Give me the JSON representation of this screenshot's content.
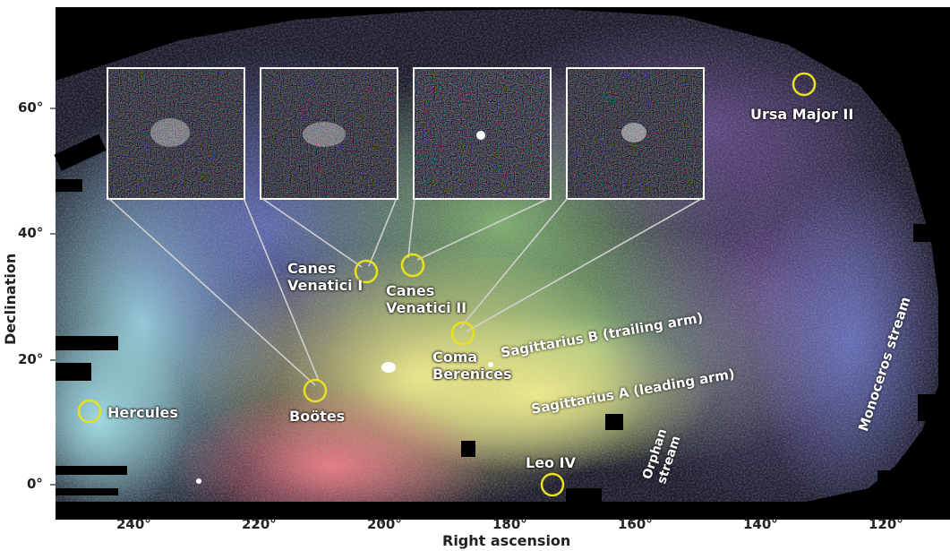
{
  "axes": {
    "x_label": "Right ascension",
    "y_label": "Declination",
    "x_ticks": [
      "240°",
      "220°",
      "200°",
      "180°",
      "160°",
      "140°",
      "120°"
    ],
    "y_ticks": [
      "60°",
      "40°",
      "20°",
      "0°"
    ]
  },
  "objects": {
    "ursa_major_ii": "Ursa Major II",
    "canes_venatici_i_line1": "Canes",
    "canes_venatici_i_line2": "Venatici I",
    "canes_venatici_ii_line1": "Canes",
    "canes_venatici_ii_line2": "Venatici II",
    "coma_berenices_line1": "Coma",
    "coma_berenices_line2": "Berenices",
    "bootes": "Boötes",
    "hercules": "Hercules",
    "leo_iv": "Leo IV"
  },
  "streams": {
    "sagittarius_b": "Sagittarius B (trailing arm)",
    "sagittarius_a": "Sagittarius A (leading arm)",
    "orphan_line1": "Orphan",
    "orphan_line2": "stream",
    "monoceros": "Monoceros stream"
  },
  "colors": {
    "circle": "#e8e020",
    "inset_border": "#ffffff",
    "connector": "#cfcfcf"
  }
}
